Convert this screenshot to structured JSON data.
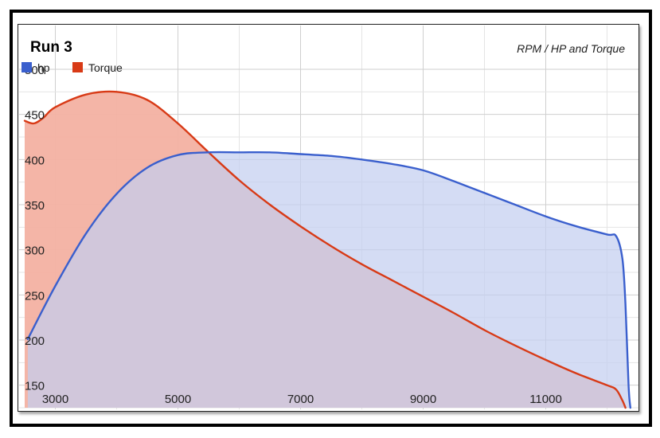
{
  "chart_data": {
    "type": "area",
    "title": "Run 3",
    "subtitle": "RPM / HP and Torque",
    "xlabel": "",
    "ylabel": "",
    "xlim": [
      2500,
      12500
    ],
    "ylim": [
      125,
      500
    ],
    "x_ticks": [
      3000,
      5000,
      7000,
      9000,
      11000
    ],
    "y_ticks": [
      150,
      200,
      250,
      300,
      350,
      400,
      450,
      500
    ],
    "grid": true,
    "legend_position": "top-left",
    "series": [
      {
        "name": "hp",
        "color": "#3a5fcd",
        "fill": "#c3cff0",
        "points": [
          [
            2550,
            201
          ],
          [
            3000,
            260
          ],
          [
            3500,
            318
          ],
          [
            4000,
            362
          ],
          [
            4500,
            391
          ],
          [
            5000,
            405
          ],
          [
            5500,
            408
          ],
          [
            6000,
            408
          ],
          [
            6500,
            408
          ],
          [
            7000,
            406
          ],
          [
            7500,
            404
          ],
          [
            8000,
            400
          ],
          [
            8500,
            395
          ],
          [
            9000,
            388
          ],
          [
            9500,
            376
          ],
          [
            10000,
            363
          ],
          [
            10500,
            350
          ],
          [
            11000,
            337
          ],
          [
            11500,
            326
          ],
          [
            12000,
            317
          ],
          [
            12150,
            315
          ],
          [
            12250,
            290
          ],
          [
            12300,
            240
          ],
          [
            12350,
            150
          ],
          [
            12380,
            125
          ]
        ]
      },
      {
        "name": "Torque",
        "color": "#d83a16",
        "fill": "#f3b1a2",
        "points": [
          [
            2500,
            443
          ],
          [
            2650,
            440
          ],
          [
            2800,
            446
          ],
          [
            3000,
            458
          ],
          [
            3500,
            472
          ],
          [
            4000,
            475
          ],
          [
            4500,
            466
          ],
          [
            5000,
            440
          ],
          [
            5500,
            408
          ],
          [
            6000,
            377
          ],
          [
            6500,
            350
          ],
          [
            7000,
            326
          ],
          [
            7500,
            304
          ],
          [
            8000,
            284
          ],
          [
            8500,
            266
          ],
          [
            9000,
            248
          ],
          [
            9500,
            230
          ],
          [
            10000,
            211
          ],
          [
            10500,
            194
          ],
          [
            11000,
            178
          ],
          [
            11500,
            163
          ],
          [
            12000,
            150
          ],
          [
            12150,
            145
          ],
          [
            12250,
            133
          ],
          [
            12300,
            125
          ]
        ]
      }
    ]
  }
}
